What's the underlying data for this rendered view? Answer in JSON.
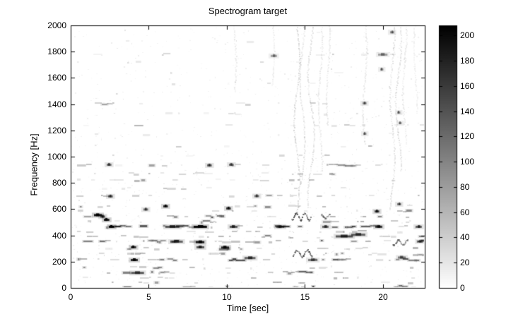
{
  "chart_data": {
    "type": "heatmap",
    "title": "Spectrogram target",
    "xlabel": "Time [sec]",
    "ylabel": "Frequency [Hz]",
    "xlim": [
      0,
      22.67
    ],
    "ylim": [
      0,
      2000
    ],
    "xticks": [
      0,
      5,
      10,
      15,
      20
    ],
    "yticks": [
      0,
      200,
      400,
      600,
      800,
      1000,
      1200,
      1400,
      1600,
      1800,
      2000
    ],
    "grid": false,
    "legend": "none",
    "colorbar": {
      "position": "right",
      "min": 0,
      "max": 208,
      "ticks": [
        0,
        20,
        40,
        60,
        80,
        100,
        120,
        140,
        160,
        180,
        200
      ],
      "colormap": "gray_inverted_white_low_black_high"
    },
    "content": {
      "description": "Grayscale spectrogram on white background: dashed horizontal harmonic bands, dense and dark below ~650 Hz (strongest continuous band near 468 Hz), sparse light dashes up to 2000 Hz, faint wavy vertical streaks near t=14.5-16.5 s and t=20.5-22 s, dotted rows hugging the bottom axis.",
      "bands_format": "[freq_hz, density_0_1, intensity_0_1, t_start_sec_optional]",
      "bands": [
        [
          8,
          0.45,
          0.3,
          3.0
        ],
        [
          40,
          0.4,
          0.22
        ],
        [
          78,
          0.3,
          0.16
        ],
        [
          117,
          0.5,
          0.28
        ],
        [
          156,
          0.45,
          0.26
        ],
        [
          215,
          0.6,
          0.34
        ],
        [
          258,
          0.4,
          0.22
        ],
        [
          301,
          0.5,
          0.3
        ],
        [
          355,
          0.55,
          0.34
        ],
        [
          390,
          0.4,
          0.24
        ],
        [
          430,
          0.3,
          0.2
        ],
        [
          468,
          0.8,
          0.48
        ],
        [
          507,
          0.4,
          0.26
        ],
        [
          546,
          0.45,
          0.28
        ],
        [
          585,
          0.25,
          0.18
        ],
        [
          624,
          0.28,
          0.2
        ],
        [
          702,
          0.35,
          0.2
        ],
        [
          760,
          0.2,
          0.13
        ],
        [
          820,
          0.35,
          0.2
        ],
        [
          870,
          0.25,
          0.15
        ],
        [
          936,
          0.4,
          0.22
        ],
        [
          1010,
          0.18,
          0.12
        ],
        [
          1080,
          0.22,
          0.14
        ],
        [
          1170,
          0.14,
          0.1
        ],
        [
          1240,
          0.22,
          0.13
        ],
        [
          1330,
          0.12,
          0.09
        ],
        [
          1404,
          0.26,
          0.14
        ],
        [
          1480,
          0.1,
          0.08
        ],
        [
          1560,
          0.13,
          0.1
        ],
        [
          1640,
          0.09,
          0.08
        ],
        [
          1720,
          0.14,
          0.11
        ],
        [
          1780,
          0.13,
          0.1
        ],
        [
          1880,
          0.1,
          0.08
        ],
        [
          1950,
          0.07,
          0.07
        ]
      ],
      "hotspots_format": "[t_sec, freq_hz, intensity_0_1, width_sec]",
      "hotspots": [
        [
          1.75,
          557,
          0.92,
          0.5
        ],
        [
          2.05,
          546,
          0.65,
          0.3
        ],
        [
          2.3,
          521,
          0.88,
          0.35
        ],
        [
          2.6,
          468,
          0.95,
          0.35
        ],
        [
          2.45,
          941,
          0.5,
          0.3
        ],
        [
          2.55,
          700,
          0.55,
          0.3
        ],
        [
          4.0,
          312,
          0.75,
          0.35
        ],
        [
          4.05,
          215,
          0.8,
          0.45
        ],
        [
          4.3,
          117,
          0.5,
          0.8
        ],
        [
          4.8,
          600,
          0.5,
          0.3
        ],
        [
          6.1,
          624,
          0.78,
          0.3
        ],
        [
          6.8,
          355,
          0.55,
          0.8
        ],
        [
          6.5,
          468,
          0.6,
          0.9
        ],
        [
          8.3,
          468,
          0.93,
          0.85
        ],
        [
          8.3,
          351,
          0.85,
          0.55
        ],
        [
          8.3,
          312,
          0.6,
          0.5
        ],
        [
          8.9,
          936,
          0.55,
          0.3
        ],
        [
          9.9,
          310,
          0.8,
          0.5
        ],
        [
          10.1,
          608,
          0.72,
          0.3
        ],
        [
          10.3,
          941,
          0.5,
          0.3
        ],
        [
          10.45,
          468,
          0.6,
          0.5
        ],
        [
          11.5,
          230,
          0.55,
          0.7
        ],
        [
          11.9,
          702,
          0.5,
          0.3
        ],
        [
          13.0,
          1770,
          0.32,
          0.4
        ],
        [
          13.4,
          468,
          0.55,
          0.5
        ],
        [
          15.5,
          215,
          0.45,
          0.6
        ],
        [
          16.3,
          468,
          0.55,
          0.4
        ],
        [
          17.5,
          395,
          0.6,
          1.1
        ],
        [
          18.4,
          408,
          0.55,
          0.9
        ],
        [
          18.8,
          1409,
          0.42,
          0.25
        ],
        [
          18.85,
          1177,
          0.38,
          0.2
        ],
        [
          19.6,
          585,
          0.7,
          0.3
        ],
        [
          19.75,
          468,
          0.68,
          0.45
        ],
        [
          19.9,
          1667,
          0.38,
          0.2
        ],
        [
          20.0,
          1780,
          0.33,
          0.6
        ],
        [
          20.6,
          1950,
          0.4,
          0.25
        ],
        [
          21.0,
          1339,
          0.38,
          0.2
        ],
        [
          21.05,
          640,
          0.48,
          0.25
        ],
        [
          21.1,
          1258,
          0.33,
          0.2
        ],
        [
          21.2,
          234,
          0.45,
          0.5
        ],
        [
          22.3,
          468,
          0.55,
          0.4
        ],
        [
          22.35,
          355,
          0.4,
          0.4
        ]
      ],
      "scribbles_format": "[t0_sec, t1_sec, center_freq_hz, amplitude_hz, intensity_0_1]",
      "scribbles": [
        [
          14.1,
          15.4,
          548,
          26,
          0.55
        ],
        [
          14.2,
          15.5,
          266,
          24,
          0.5
        ],
        [
          16.0,
          16.6,
          548,
          14,
          0.4
        ],
        [
          20.6,
          21.6,
          352,
          20,
          0.42
        ]
      ],
      "streaks_format": "[t_sec, f_low_hz, f_high_hz, intensity_0_1, wobble_sec]",
      "streaks": [
        [
          10.45,
          1500,
          2000,
          0.07,
          0.1
        ],
        [
          12.9,
          1550,
          2000,
          0.06,
          0.08
        ],
        [
          14.45,
          560,
          2000,
          0.13,
          0.18
        ],
        [
          14.8,
          800,
          2000,
          0.1,
          0.15
        ],
        [
          15.35,
          620,
          2000,
          0.11,
          0.2
        ],
        [
          15.95,
          900,
          2000,
          0.08,
          0.12
        ],
        [
          16.45,
          1250,
          2000,
          0.08,
          0.1
        ],
        [
          18.8,
          1100,
          2000,
          0.08,
          0.12
        ],
        [
          20.55,
          600,
          2000,
          0.11,
          0.15
        ],
        [
          20.95,
          900,
          2000,
          0.1,
          0.18
        ],
        [
          21.35,
          1100,
          2000,
          0.08,
          0.12
        ],
        [
          22.05,
          1350,
          2000,
          0.06,
          0.1
        ]
      ],
      "speckle": {
        "count": 1000,
        "low_freq_fraction": 0.6,
        "alpha_max": 0.06
      },
      "start_silence_sec": 0.35,
      "seed": 7
    },
    "axis_color": "#000000",
    "background_color": "#ffffff"
  }
}
